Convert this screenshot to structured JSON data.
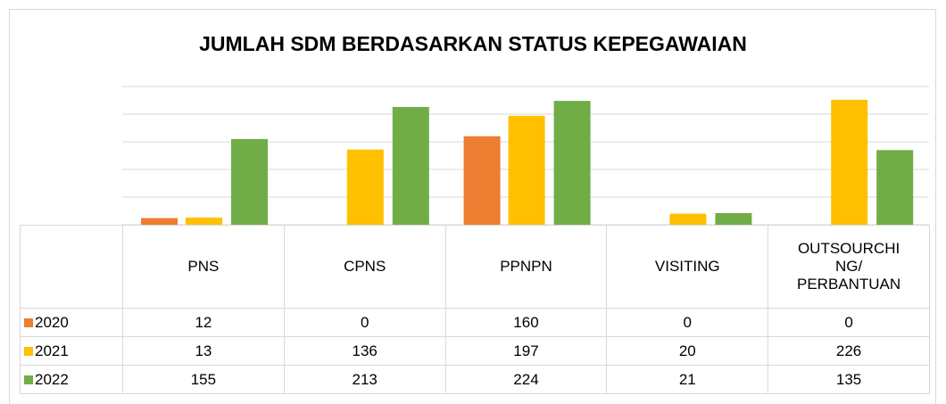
{
  "chart_data": {
    "type": "bar",
    "title": "JUMLAH SDM BERDASARKAN STATUS KEPEGAWAIAN",
    "categories": [
      "PNS",
      "CPNS",
      "PPNPN",
      "VISITING",
      "OUTSOURCHING/ PERBANTUAN"
    ],
    "series": [
      {
        "name": "2020",
        "color": "#ed7d31",
        "values": [
          12,
          0,
          160,
          0,
          0
        ]
      },
      {
        "name": "2021",
        "color": "#ffc000",
        "values": [
          13,
          136,
          197,
          20,
          226
        ]
      },
      {
        "name": "2022",
        "color": "#70ad47",
        "values": [
          155,
          213,
          224,
          21,
          135
        ]
      }
    ],
    "ylim": [
      0,
      250
    ],
    "yticks": [
      0,
      50,
      100,
      150,
      200,
      250
    ],
    "grid": true
  }
}
